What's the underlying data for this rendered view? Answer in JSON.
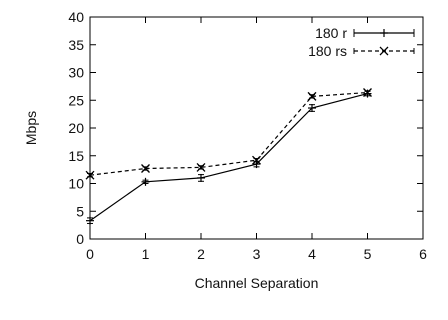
{
  "chart_data": {
    "type": "line",
    "title": "",
    "xlabel": "Channel Separation",
    "ylabel": "Mbps",
    "xlim": [
      0,
      6
    ],
    "ylim": [
      0,
      40
    ],
    "x_ticks": [
      0,
      1,
      2,
      3,
      4,
      5,
      6
    ],
    "y_ticks": [
      0,
      5,
      10,
      15,
      20,
      25,
      30,
      35,
      40
    ],
    "grid": false,
    "legend_position": "top-right",
    "series": [
      {
        "name": "180 r",
        "style": "solid",
        "marker": "plus",
        "color": "#000000",
        "x": [
          0,
          1,
          2,
          3,
          4,
          5
        ],
        "y": [
          3.3,
          10.3,
          11.0,
          13.5,
          23.6,
          26.2
        ],
        "error": [
          0.5,
          0.3,
          0.6,
          0.5,
          0.6,
          0.4
        ]
      },
      {
        "name": "180 rs",
        "style": "dashed",
        "marker": "cross",
        "color": "#000000",
        "x": [
          0,
          1,
          2,
          3,
          4,
          5
        ],
        "y": [
          11.5,
          12.7,
          12.9,
          14.2,
          25.7,
          26.4
        ],
        "error": [
          0.3,
          0.3,
          0.3,
          0.3,
          0.3,
          0.3
        ]
      }
    ]
  }
}
